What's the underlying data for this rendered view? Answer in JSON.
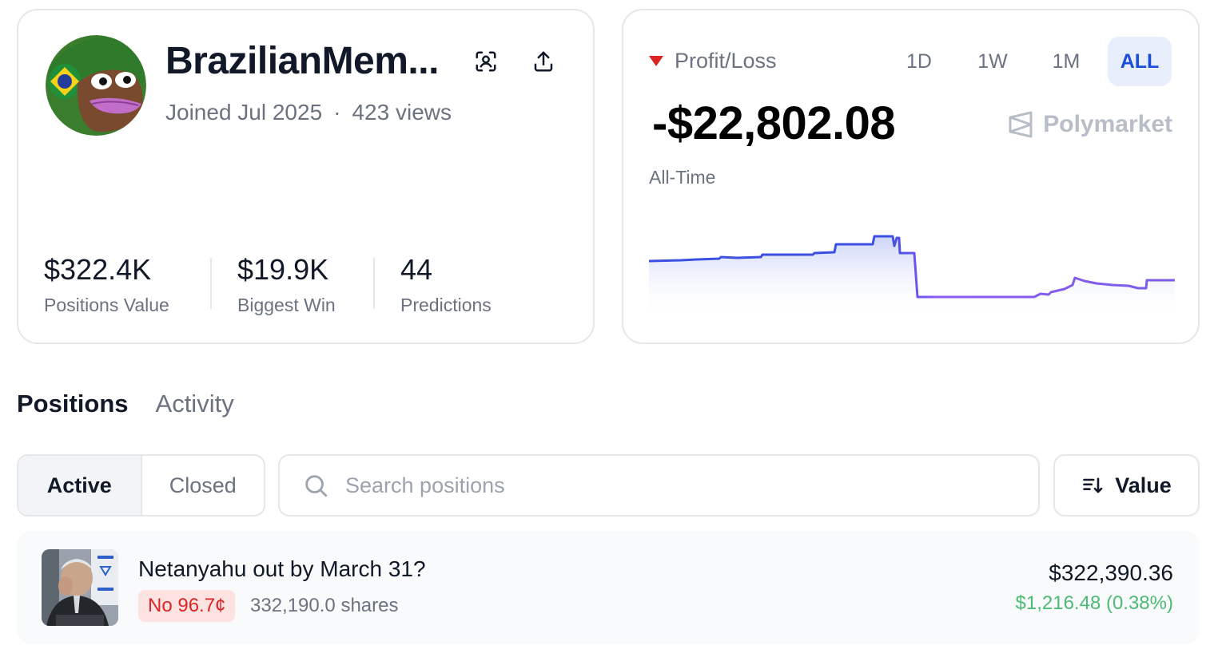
{
  "profile": {
    "username": "BrazilianMem...",
    "joined": "Joined Jul 2025",
    "separator": "·",
    "views": "423 views",
    "stats": [
      {
        "value": "$322.4K",
        "label": "Positions Value"
      },
      {
        "value": "$19.9K",
        "label": "Biggest Win"
      },
      {
        "value": "44",
        "label": "Predictions"
      }
    ]
  },
  "pnl": {
    "label": "Profit/Loss",
    "ranges": [
      "1D",
      "1W",
      "1M",
      "ALL"
    ],
    "active_range": "ALL",
    "value": "-$22,802.08",
    "period": "All-Time",
    "brand": "Polymarket",
    "colors": {
      "down": "#dc2626",
      "line_start": "#3b4fe0",
      "line_end": "#8b5cf6"
    }
  },
  "tabs": {
    "positions": "Positions",
    "activity": "Activity",
    "active": "Positions"
  },
  "filters": {
    "active_label": "Active",
    "closed_label": "Closed",
    "search_placeholder": "Search positions",
    "sort_label": "Value"
  },
  "positions": [
    {
      "title": "Netanyahu out by March 31?",
      "outcome_badge": "No 96.7¢",
      "shares": "332,190.0 shares",
      "value": "$322,390.36",
      "pnl": "$1,216.48 (0.38%)"
    }
  ]
}
